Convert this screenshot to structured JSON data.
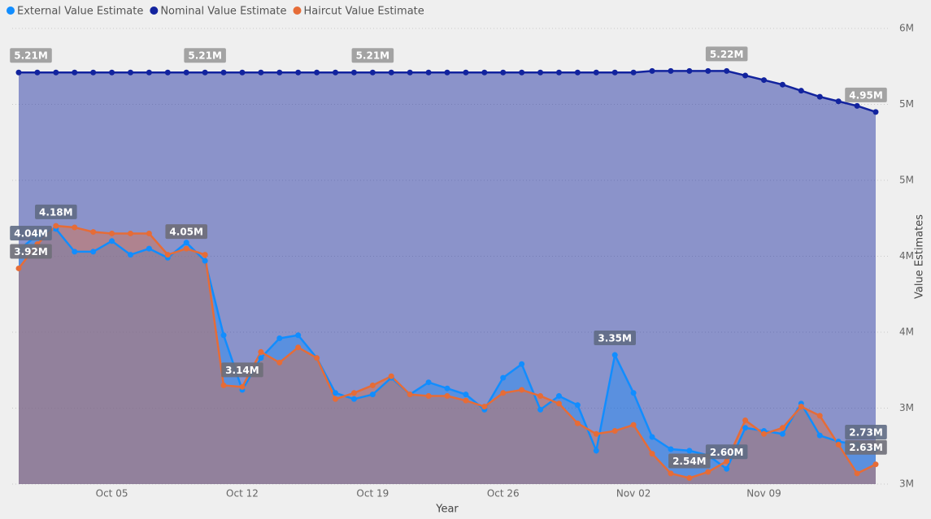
{
  "chart_data": {
    "type": "area",
    "x_label": "Year",
    "y_label": "Value Estimates",
    "categories": [
      null,
      null,
      null,
      null,
      null,
      "Oct 05",
      null,
      null,
      null,
      null,
      null,
      null,
      "Oct 12",
      null,
      null,
      null,
      null,
      null,
      null,
      "Oct 19",
      null,
      null,
      null,
      null,
      null,
      null,
      "Oct 26",
      null,
      null,
      null,
      null,
      null,
      null,
      "Nov 02",
      null,
      null,
      null,
      null,
      null,
      null,
      "Nov 09",
      null,
      null,
      null,
      null,
      null,
      null
    ],
    "ylim": [
      2.5,
      5.5
    ],
    "yticks": [
      {
        "value": 2.5,
        "label": "3M"
      },
      {
        "value": 3,
        "label": "3M"
      },
      {
        "value": 3.5,
        "label": "4M"
      },
      {
        "value": 4,
        "label": "4M"
      },
      {
        "value": 4.5,
        "label": "5M"
      },
      {
        "value": 5,
        "label": "5M"
      },
      {
        "value": 5.5,
        "label": "6M"
      }
    ],
    "grid": true,
    "legend": "top-left",
    "series": [
      {
        "name": "External Value Estimate",
        "color": "#118DFF",
        "values": [
          4.04,
          4.14,
          4.18,
          4.03,
          4.03,
          4.1,
          4.01,
          4.05,
          3.99,
          4.09,
          3.97,
          3.48,
          3.12,
          3.33,
          3.46,
          3.48,
          3.33,
          3.1,
          3.06,
          3.09,
          3.2,
          3.09,
          3.17,
          3.13,
          3.09,
          2.99,
          3.2,
          3.29,
          2.99,
          3.08,
          3.02,
          2.72,
          3.35,
          3.1,
          2.81,
          2.73,
          2.72,
          2.69,
          2.6,
          2.87,
          2.85,
          2.83,
          3.03,
          2.82,
          2.78,
          2.76,
          2.73
        ],
        "value_labels": [
          "4.04M",
          null,
          "4.18M",
          null,
          null,
          null,
          null,
          null,
          null,
          null,
          null,
          null,
          null,
          null,
          null,
          null,
          null,
          null,
          null,
          null,
          null,
          null,
          null,
          null,
          null,
          null,
          null,
          null,
          null,
          null,
          null,
          null,
          "3.35M",
          null,
          null,
          null,
          null,
          null,
          "2.60M",
          null,
          null,
          null,
          null,
          null,
          null,
          null,
          "2.73M"
        ]
      },
      {
        "name": "Nominal Value Estimate",
        "color": "#12239E",
        "values": [
          5.21,
          5.21,
          5.21,
          5.21,
          5.21,
          5.21,
          5.21,
          5.21,
          5.21,
          5.21,
          5.21,
          5.21,
          5.21,
          5.21,
          5.21,
          5.21,
          5.21,
          5.21,
          5.21,
          5.21,
          5.21,
          5.21,
          5.21,
          5.21,
          5.21,
          5.21,
          5.21,
          5.21,
          5.21,
          5.21,
          5.21,
          5.21,
          5.21,
          5.21,
          5.22,
          5.22,
          5.22,
          5.22,
          5.22,
          5.19,
          5.16,
          5.13,
          5.09,
          5.05,
          5.02,
          4.99,
          4.95
        ],
        "value_labels": [
          "5.21M",
          null,
          null,
          null,
          null,
          null,
          null,
          null,
          null,
          null,
          "5.21M",
          null,
          null,
          null,
          null,
          null,
          null,
          null,
          null,
          "5.21M",
          null,
          null,
          null,
          null,
          null,
          null,
          null,
          null,
          null,
          null,
          null,
          null,
          null,
          null,
          null,
          null,
          null,
          null,
          "5.22M",
          null,
          null,
          null,
          null,
          null,
          null,
          null,
          "4.95M"
        ]
      },
      {
        "name": "Haircut Value Estimate",
        "color": "#E66C37",
        "values": [
          3.92,
          4.08,
          4.2,
          4.19,
          4.16,
          4.15,
          4.15,
          4.15,
          4.01,
          4.05,
          4.01,
          3.15,
          3.14,
          3.37,
          3.3,
          3.4,
          3.33,
          3.06,
          3.1,
          3.15,
          3.21,
          3.09,
          3.08,
          3.08,
          3.05,
          3.01,
          3.1,
          3.12,
          3.08,
          3.03,
          2.9,
          2.83,
          2.85,
          2.89,
          2.7,
          2.57,
          2.54,
          2.58,
          2.65,
          2.92,
          2.83,
          2.87,
          3.01,
          2.95,
          2.76,
          2.57,
          2.63
        ],
        "value_labels": [
          "3.92M",
          null,
          null,
          null,
          null,
          null,
          null,
          null,
          null,
          "4.05M",
          null,
          null,
          "3.14M",
          null,
          null,
          null,
          null,
          null,
          null,
          null,
          null,
          null,
          null,
          null,
          null,
          null,
          null,
          null,
          null,
          null,
          null,
          null,
          null,
          null,
          null,
          null,
          "2.54M",
          null,
          null,
          null,
          null,
          null,
          null,
          null,
          null,
          null,
          "2.63M"
        ]
      }
    ]
  }
}
